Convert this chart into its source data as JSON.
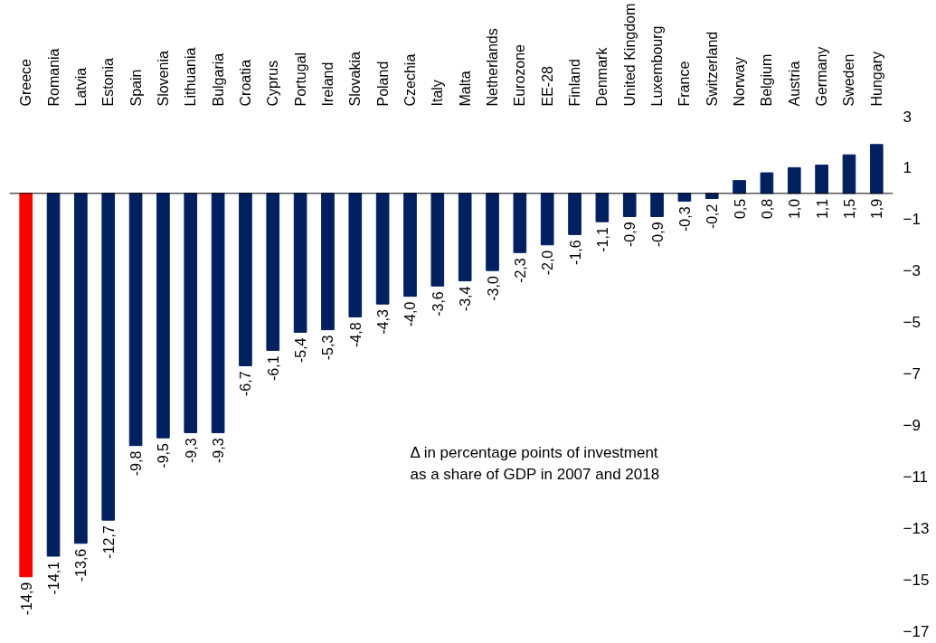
{
  "chart_data": {
    "type": "bar",
    "categories": [
      "Greece",
      "Romania",
      "Latvia",
      "Estonia",
      "Spain",
      "Slovenia",
      "Lithuania",
      "Bulgaria",
      "Croatia",
      "Cyprus",
      "Portugal",
      "Ireland",
      "Slovakia",
      "Poland",
      "Czechia",
      "Italy",
      "Malta",
      "Netherlands",
      "Eurozone",
      "EE-28",
      "Finland",
      "Denmark",
      "United Kingdom",
      "Luxembourg",
      "France",
      "Switzerland",
      "Norway",
      "Belgium",
      "Austria",
      "Germany",
      "Sweden",
      "Hungary"
    ],
    "values": [
      -14.9,
      -14.1,
      -13.6,
      -12.7,
      -9.8,
      -9.5,
      -9.3,
      -9.3,
      -6.7,
      -6.1,
      -5.4,
      -5.3,
      -4.8,
      -4.3,
      -4.0,
      -3.6,
      -3.4,
      -3.0,
      -2.3,
      -2.0,
      -1.6,
      -1.1,
      -0.9,
      -0.9,
      -0.3,
      -0.2,
      0.5,
      0.8,
      1.0,
      1.1,
      1.5,
      1.9
    ],
    "value_labels": [
      "-14,9",
      "-14,1",
      "-13,6",
      "-12,7",
      "-9,8",
      "-9,5",
      "-9,3",
      "-9,3",
      "-6,7",
      "-6,1",
      "-5,4",
      "-5,3",
      "-4,8",
      "-4,3",
      "-4,0",
      "-3,6",
      "-3,4",
      "-3,0",
      "-2,3",
      "-2,0",
      "-1,6",
      "-1,1",
      "-0,9",
      "-0,9",
      "-0,3",
      "-0,2",
      "0,5",
      "0,8",
      "1,0",
      "1,1",
      "1,5",
      "1,9"
    ],
    "colors": [
      "#ff0000",
      "#002060",
      "#002060",
      "#002060",
      "#002060",
      "#002060",
      "#002060",
      "#002060",
      "#002060",
      "#002060",
      "#002060",
      "#002060",
      "#002060",
      "#002060",
      "#002060",
      "#002060",
      "#002060",
      "#002060",
      "#002060",
      "#002060",
      "#002060",
      "#002060",
      "#002060",
      "#002060",
      "#002060",
      "#002060",
      "#002060",
      "#002060",
      "#002060",
      "#002060",
      "#002060",
      "#002060"
    ],
    "ylim": [
      -17,
      3
    ],
    "yticks": [
      3,
      1,
      -1,
      -3,
      -5,
      -7,
      -9,
      -11,
      -13,
      -15,
      -17
    ],
    "annotations": [
      "Δ in percentage points of investment",
      "as a share of GDP in 2007 and 2018"
    ],
    "grid": false
  }
}
